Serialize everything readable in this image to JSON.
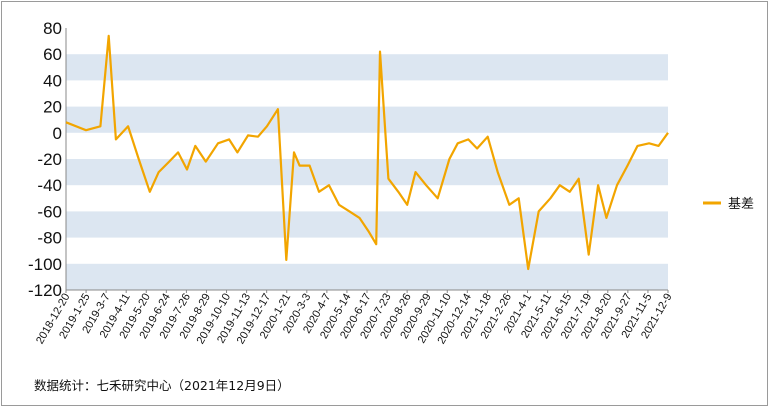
{
  "chart_data": {
    "type": "line",
    "title": "",
    "xlabel": "",
    "ylabel": "",
    "ylim": [
      -120,
      80
    ],
    "y_ticks": [
      80,
      60,
      40,
      20,
      0,
      -20,
      -40,
      -60,
      -80,
      -100,
      -120
    ],
    "grid": "alternating horizontal bands",
    "legend_position": "right",
    "colors": {
      "series": "#f2a500",
      "band": "#dce6f1",
      "background": "#ffffff"
    },
    "x_tick_labels": [
      "2018-12-20",
      "2019-1-25",
      "2019-3-7",
      "2019-4-11",
      "2019-5-20",
      "2019-6-24",
      "2019-7-26",
      "2019-8-29",
      "2019-10-10",
      "2019-11-13",
      "2019-12-17",
      "2020-1-21",
      "2020-3-3",
      "2020-4-7",
      "2020-5-14",
      "2020-6-17",
      "2020-7-23",
      "2020-8-26",
      "2020-9-29",
      "2020-11-10",
      "2020-12-14",
      "2021-1-18",
      "2021-2-26",
      "2021-4-1",
      "2021-5-11",
      "2021-6-15",
      "2021-7-19",
      "2021-8-20",
      "2021-9-27",
      "2021-11-5",
      "2021-12-9"
    ],
    "series": [
      {
        "name": "基差",
        "x": [
          "2018-12-20",
          "2019-1-25",
          "2019-2-20",
          "2019-3-7",
          "2019-3-20",
          "2019-4-11",
          "2019-4-30",
          "2019-5-20",
          "2019-6-5",
          "2019-6-24",
          "2019-7-10",
          "2019-7-26",
          "2019-8-10",
          "2019-8-29",
          "2019-9-20",
          "2019-10-10",
          "2019-10-25",
          "2019-11-13",
          "2019-12-1",
          "2019-12-17",
          "2020-1-6",
          "2020-1-21",
          "2020-2-4",
          "2020-2-14",
          "2020-3-3",
          "2020-3-20",
          "2020-4-7",
          "2020-4-25",
          "2020-5-14",
          "2020-6-1",
          "2020-6-17",
          "2020-7-1",
          "2020-7-8",
          "2020-7-23",
          "2020-8-10",
          "2020-8-26",
          "2020-9-10",
          "2020-9-29",
          "2020-10-20",
          "2020-11-10",
          "2020-11-25",
          "2020-12-14",
          "2020-12-30",
          "2021-1-18",
          "2021-2-5",
          "2021-2-26",
          "2021-3-15",
          "2021-4-1",
          "2021-4-20",
          "2021-5-11",
          "2021-5-28",
          "2021-6-15",
          "2021-7-1",
          "2021-7-19",
          "2021-8-5",
          "2021-8-20",
          "2021-9-8",
          "2021-9-27",
          "2021-10-15",
          "2021-11-5",
          "2021-11-22",
          "2021-12-9"
        ],
        "y": [
          8,
          2,
          5,
          74,
          -5,
          5,
          -20,
          -45,
          -30,
          -22,
          -15,
          -28,
          -10,
          -22,
          -8,
          -5,
          -15,
          -2,
          -3,
          5,
          18,
          -97,
          -15,
          -25,
          -25,
          -45,
          -40,
          -55,
          -60,
          -65,
          -75,
          -85,
          62,
          -35,
          -45,
          -55,
          -30,
          -40,
          -50,
          -20,
          -8,
          -5,
          -12,
          -3,
          -30,
          -55,
          -50,
          -104,
          -60,
          -50,
          -40,
          -45,
          -35,
          -93,
          -40,
          -65,
          -40,
          -25,
          -10,
          -8,
          -10,
          0
        ]
      }
    ],
    "legend": [
      "基差"
    ]
  },
  "footer": {
    "source": "数据统计：七禾研究中心（2021年12月9日）"
  }
}
